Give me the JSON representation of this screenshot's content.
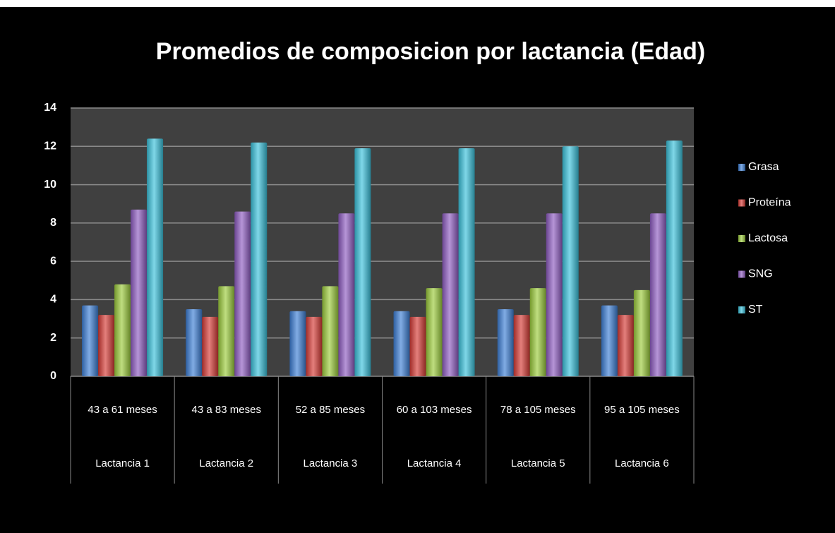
{
  "chart_data": {
    "type": "bar",
    "title": "Promedios de composicion por lactancia (Edad)",
    "categories": [
      "43 a 61 meses",
      "43 a 83 meses",
      "52 a 85 meses",
      "60 a 103 meses",
      "78 a 105 meses",
      "95 a 105 meses"
    ],
    "groups": [
      "Lactancia 1",
      "Lactancia 2",
      "Lactancia 3",
      "Lactancia 4",
      "Lactancia 5",
      "Lactancia 6"
    ],
    "series": [
      {
        "name": "Grasa",
        "color": "#3d7fd6",
        "values": [
          3.7,
          3.5,
          3.4,
          3.4,
          3.5,
          3.7
        ]
      },
      {
        "name": "Proteína",
        "color": "#d63a35",
        "values": [
          3.2,
          3.1,
          3.1,
          3.1,
          3.2,
          3.2
        ]
      },
      {
        "name": "Lactosa",
        "color": "#9ccc3c",
        "values": [
          4.8,
          4.7,
          4.7,
          4.6,
          4.6,
          4.5
        ]
      },
      {
        "name": "SNG",
        "color": "#8f5cc2",
        "values": [
          8.7,
          8.6,
          8.5,
          8.5,
          8.5,
          8.5
        ]
      },
      {
        "name": "ST",
        "color": "#3ac2dc",
        "values": [
          12.4,
          12.2,
          11.9,
          11.9,
          12.0,
          12.3
        ]
      }
    ],
    "ylim": [
      0,
      14
    ],
    "yticks": [
      0,
      2,
      4,
      6,
      8,
      10,
      12,
      14
    ],
    "grid": true,
    "legend": "right"
  }
}
